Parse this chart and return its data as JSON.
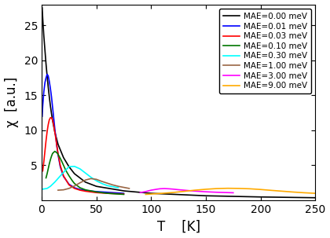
{
  "xlabel": "T    [K]",
  "ylabel": "χ  [a.u.]",
  "xlim": [
    0,
    250
  ],
  "ylim": [
    0,
    28
  ],
  "yticks": [
    5,
    10,
    15,
    20,
    25
  ],
  "xticks": [
    0,
    50,
    100,
    150,
    200,
    250
  ],
  "legend_entries": [
    {
      "label": "MAE=0.00 meV",
      "color": "#000000"
    },
    {
      "label": "MAE=0.01 meV",
      "color": "#0000ff"
    },
    {
      "label": "MAE=0.03 meV",
      "color": "#ff0000"
    },
    {
      "label": "MAE=0.10 meV",
      "color": "#007700"
    },
    {
      "label": "MAE=0.30 meV",
      "color": "#00ffff"
    },
    {
      "label": "MAE=1.00 meV",
      "color": "#996644"
    },
    {
      "label": "MAE=3.00 meV",
      "color": "#ff00ff"
    },
    {
      "label": "MAE=9.00 meV",
      "color": "#ffaa00"
    }
  ],
  "curves": {
    "mae000": {
      "color": "#000000",
      "T": [
        0.5,
        1,
        2,
        3,
        4,
        5,
        6,
        7,
        8,
        9,
        10,
        12,
        15,
        20,
        25,
        30,
        40,
        50,
        75,
        100,
        150,
        200,
        250
      ],
      "chi": [
        27.5,
        26.0,
        23.5,
        21.5,
        19.5,
        17.8,
        16.2,
        14.8,
        13.5,
        12.4,
        11.4,
        9.8,
        8.0,
        6.1,
        4.8,
        3.8,
        2.6,
        2.0,
        1.35,
        1.0,
        0.65,
        0.48,
        0.37
      ]
    },
    "mae001": {
      "color": "#0000ff",
      "T": [
        0.5,
        1,
        2,
        3,
        4,
        5,
        6,
        7,
        8,
        9,
        10,
        11,
        12,
        13,
        14,
        15,
        17,
        20,
        25,
        30,
        35,
        40,
        50,
        60,
        75
      ],
      "chi": [
        12.0,
        13.5,
        15.5,
        16.8,
        17.5,
        18.0,
        17.8,
        17.0,
        16.0,
        14.8,
        13.3,
        11.8,
        10.3,
        8.9,
        7.6,
        6.5,
        4.8,
        3.4,
        2.3,
        1.8,
        1.55,
        1.4,
        1.25,
        1.15,
        1.0
      ]
    },
    "mae003": {
      "color": "#ff0000",
      "T": [
        1,
        2,
        3,
        4,
        5,
        6,
        7,
        8,
        9,
        10,
        11,
        12,
        13,
        14,
        15,
        17,
        20,
        25,
        30,
        35,
        40,
        50,
        60,
        75
      ],
      "chi": [
        4.2,
        5.5,
        7.0,
        8.5,
        9.8,
        10.8,
        11.5,
        11.8,
        11.8,
        11.5,
        10.8,
        9.8,
        8.8,
        7.7,
        6.7,
        5.0,
        3.5,
        2.2,
        1.7,
        1.45,
        1.3,
        1.1,
        1.0,
        0.9
      ]
    },
    "mae010": {
      "color": "#007700",
      "T": [
        4,
        5,
        6,
        7,
        8,
        9,
        10,
        12,
        14,
        16,
        18,
        20,
        22,
        25,
        28,
        30,
        35,
        40,
        50,
        60,
        75
      ],
      "chi": [
        3.2,
        3.8,
        4.5,
        5.2,
        5.8,
        6.3,
        6.7,
        7.0,
        6.8,
        6.3,
        5.7,
        5.0,
        4.3,
        3.5,
        2.8,
        2.4,
        1.8,
        1.5,
        1.2,
        1.0,
        0.85
      ]
    },
    "mae030": {
      "color": "#00ffff",
      "T": [
        1,
        2,
        3,
        5,
        8,
        12,
        16,
        20,
        25,
        30,
        35,
        40,
        45,
        50,
        55,
        60,
        70
      ],
      "chi": [
        1.6,
        1.62,
        1.65,
        1.7,
        2.0,
        2.6,
        3.3,
        4.0,
        4.8,
        4.85,
        4.5,
        3.9,
        3.3,
        2.8,
        2.4,
        2.1,
        1.8
      ]
    },
    "mae100": {
      "color": "#996644",
      "T": [
        15,
        20,
        25,
        30,
        35,
        40,
        45,
        50,
        55,
        60,
        65,
        70,
        75,
        80
      ],
      "chi": [
        1.45,
        1.5,
        1.7,
        2.05,
        2.5,
        2.9,
        3.1,
        3.0,
        2.7,
        2.45,
        2.2,
        2.0,
        1.85,
        1.7
      ]
    },
    "mae300": {
      "color": "#ff00ff",
      "T": [
        90,
        95,
        100,
        105,
        108,
        112,
        116,
        120,
        125,
        130,
        135,
        140,
        150,
        160,
        175
      ],
      "chi": [
        1.1,
        1.25,
        1.45,
        1.58,
        1.65,
        1.68,
        1.65,
        1.6,
        1.52,
        1.45,
        1.38,
        1.32,
        1.22,
        1.15,
        1.08
      ]
    },
    "mae900": {
      "color": "#ffaa00",
      "T": [
        95,
        100,
        110,
        120,
        130,
        140,
        150,
        160,
        170,
        180,
        190,
        200,
        210,
        220,
        230,
        240,
        250
      ],
      "chi": [
        0.85,
        0.9,
        1.0,
        1.12,
        1.28,
        1.45,
        1.58,
        1.68,
        1.72,
        1.7,
        1.65,
        1.55,
        1.42,
        1.3,
        1.18,
        1.08,
        1.0
      ]
    }
  },
  "background_color": "#ffffff",
  "linewidth": 1.2
}
